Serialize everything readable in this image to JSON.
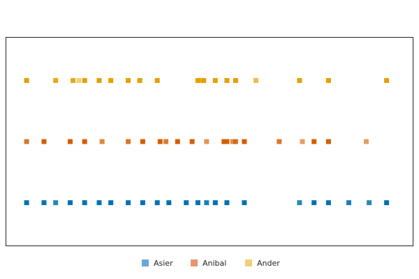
{
  "chart_data": {
    "type": "scatter",
    "title": "",
    "xlabel": "",
    "ylabel": "",
    "xlim": [
      0,
      140
    ],
    "ylim": [
      0.3,
      3.7
    ],
    "grid": false,
    "axes_ticks_visible": false,
    "legend_position": "bottom-center",
    "marker": "square",
    "series": [
      {
        "name": "Asier",
        "color": "#0072B2",
        "legend_color": "#6AA8D6",
        "y": 1,
        "x": [
          7,
          13,
          17,
          22,
          27,
          32,
          36,
          42,
          47,
          52,
          56,
          62,
          66,
          69,
          72,
          76,
          82,
          101,
          106,
          111,
          118,
          125,
          131
        ],
        "opacity": [
          1,
          1,
          0.85,
          1,
          1,
          1,
          1,
          1,
          1,
          1,
          1,
          1,
          1,
          0.9,
          1,
          1,
          1,
          0.85,
          1,
          1,
          0.9,
          0.85,
          1
        ]
      },
      {
        "name": "Anibal",
        "color": "#D55E00",
        "legend_color": "#E8956C",
        "y": 2,
        "x": [
          7,
          13,
          22,
          27,
          33,
          42,
          47,
          53,
          55,
          59,
          64,
          69,
          75,
          76,
          78,
          79,
          82,
          94,
          102,
          106,
          111,
          124
        ],
        "opacity": [
          0.85,
          1,
          1,
          1,
          0.75,
          0.85,
          1,
          1,
          0.8,
          1,
          1,
          0.65,
          1,
          1,
          0.7,
          0.9,
          1,
          0.85,
          0.6,
          1,
          1,
          0.6
        ]
      },
      {
        "name": "Ander",
        "color": "#E69F00",
        "legend_color": "#F0CF7A",
        "y": 3,
        "x": [
          7,
          17,
          23,
          25,
          27,
          32,
          36,
          42,
          46,
          52,
          66,
          67,
          68,
          72,
          76,
          79,
          86,
          101,
          111,
          131
        ],
        "opacity": [
          1,
          0.9,
          0.9,
          0.5,
          1,
          1,
          1,
          1,
          1,
          1,
          1,
          0.8,
          1,
          1,
          1,
          1,
          0.7,
          1,
          1,
          1
        ]
      }
    ]
  }
}
